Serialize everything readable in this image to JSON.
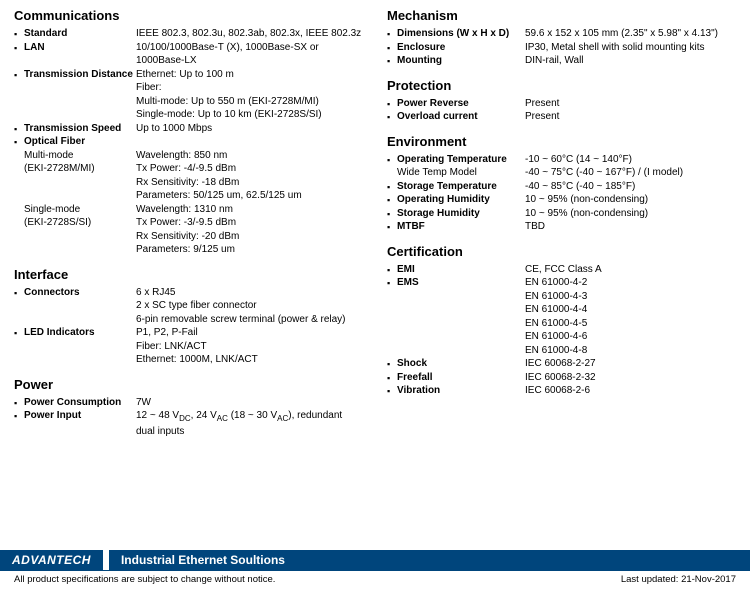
{
  "left": {
    "communications": {
      "title": "Communications",
      "standard": {
        "label": "Standard",
        "value": "IEEE 802.3, 802.3u, 802.3ab, 802.3x, IEEE 802.3z"
      },
      "lan": {
        "label": "LAN",
        "value": "10/100/1000Base-T (X), 1000Base-SX or 1000Base-LX"
      },
      "transDist": {
        "label": "Transmission Distance",
        "l1": "Ethernet: Up to 100 m",
        "l2": "Fiber:",
        "l3": "Multi-mode: Up to 550 m (EKI-2728M/MI)",
        "l4": "Single-mode: Up to 10 km (EKI-2728S/SI)"
      },
      "transSpeed": {
        "label": "Transmission Speed",
        "value": "Up to 1000 Mbps"
      },
      "optical": {
        "label": "Optical Fiber",
        "mm": {
          "name": "Multi-mode",
          "model": "(EKI-2728M/MI)",
          "l1": "Wavelength: 850 nm",
          "l2": "Tx Power: -4/-9.5 dBm",
          "l3": "Rx Sensitivity: -18 dBm",
          "l4": "Parameters: 50/125 um, 62.5/125 um"
        },
        "sm": {
          "name": "Single-mode",
          "model": "(EKI-2728S/SI)",
          "l1": "Wavelength: 1310 nm",
          "l2": "Tx Power: -3/-9.5 dBm",
          "l3": "Rx Sensitivity: -20 dBm",
          "l4": "Parameters: 9/125 um"
        }
      }
    },
    "interface": {
      "title": "Interface",
      "connectors": {
        "label": "Connectors",
        "l1": "6 x RJ45",
        "l2": "2 x SC type fiber connector",
        "l3": "6-pin removable screw terminal (power & relay)"
      },
      "led": {
        "label": "LED Indicators",
        "l1": "P1, P2, P-Fail",
        "l2": "Fiber: LNK/ACT",
        "l3": "Ethernet: 1000M, LNK/ACT"
      }
    },
    "power": {
      "title": "Power",
      "cons": {
        "label": "Power Consumption",
        "value": "7W"
      },
      "input": {
        "label": "Power Input"
      }
    }
  },
  "right": {
    "mechanism": {
      "title": "Mechanism",
      "dim": {
        "label": "Dimensions (W x H x D)",
        "value": "59.6 x 152 x 105 mm (2.35\" x 5.98\" x 4.13\")"
      },
      "enc": {
        "label": "Enclosure",
        "value": "IP30, Metal shell with solid mounting kits"
      },
      "mount": {
        "label": "Mounting",
        "value": "DIN-rail, Wall"
      }
    },
    "protection": {
      "title": "Protection",
      "pr": {
        "label": "Power Reverse",
        "value": "Present"
      },
      "oc": {
        "label": "Overload current",
        "value": "Present"
      }
    },
    "environment": {
      "title": "Environment",
      "opTemp": {
        "label": "Operating Temperature",
        "value": "-10 ~ 60°C (14 ~ 140°F)"
      },
      "wide": {
        "label": "Wide Temp Model",
        "value": "-40 ~ 75°C (-40 ~ 167°F) / (I model)"
      },
      "stTemp": {
        "label": "Storage Temperature",
        "value": "-40 ~ 85°C (-40 ~ 185°F)"
      },
      "opHum": {
        "label": "Operating Humidity",
        "value": "10 ~ 95% (non-condensing)"
      },
      "stHum": {
        "label": "Storage Humidity",
        "value": "10 ~ 95% (non-condensing)"
      },
      "mtbf": {
        "label": "MTBF",
        "value": "TBD"
      }
    },
    "certification": {
      "title": "Certification",
      "emi": {
        "label": "EMI",
        "value": "CE, FCC Class A"
      },
      "ems": {
        "label": "EMS",
        "l1": "EN 61000-4-2",
        "l2": "EN 61000-4-3",
        "l3": "EN 61000-4-4",
        "l4": "EN 61000-4-5",
        "l5": "EN 61000-4-6",
        "l6": "EN 61000-4-8"
      },
      "shock": {
        "label": "Shock",
        "value": "IEC 60068-2-27"
      },
      "freefall": {
        "label": "Freefall",
        "value": "IEC 60068-2-32"
      },
      "vibration": {
        "label": "Vibration",
        "value": "IEC 60068-2-6"
      }
    }
  },
  "footer": {
    "logo": "ADVANTECH",
    "bar": "Industrial Ethernet Soultions",
    "noteLeft": "All product specifications are subject to change without notice.",
    "noteRight": "Last updated: 21-Nov-2017"
  }
}
